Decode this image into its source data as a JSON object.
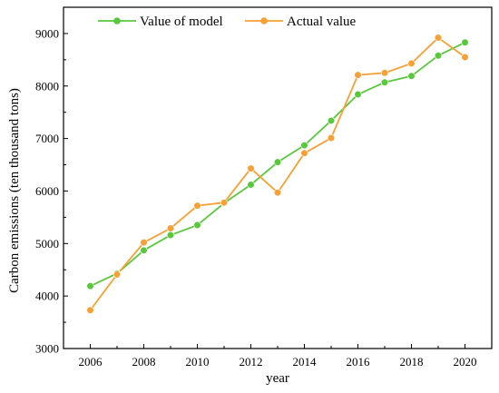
{
  "chart_data": {
    "type": "line",
    "x": [
      2006,
      2007,
      2008,
      2009,
      2010,
      2011,
      2012,
      2013,
      2014,
      2015,
      2016,
      2017,
      2018,
      2019,
      2020
    ],
    "series": [
      {
        "name": "Value of model",
        "color": "#5ac83c",
        "values": [
          4190,
          4430,
          4870,
          5160,
          5350,
          5770,
          6120,
          6550,
          6870,
          7340,
          7840,
          8070,
          8190,
          8580,
          8830
        ]
      },
      {
        "name": "Actual value",
        "color": "#f7a035",
        "values": [
          3730,
          4410,
          5020,
          5290,
          5720,
          5780,
          6430,
          5970,
          6720,
          7010,
          8210,
          8250,
          8430,
          8920,
          8550
        ]
      }
    ],
    "xlabel": "year",
    "ylabel": "Carbon emissions (ten thousand tons)",
    "xlim": [
      2005,
      2021
    ],
    "ylim": [
      3000,
      9500
    ],
    "xticks": [
      2006,
      2008,
      2010,
      2012,
      2014,
      2016,
      2018,
      2020
    ],
    "yticks": [
      3000,
      4000,
      5000,
      6000,
      7000,
      8000,
      9000
    ],
    "grid": false,
    "legend_position": "top-left"
  }
}
